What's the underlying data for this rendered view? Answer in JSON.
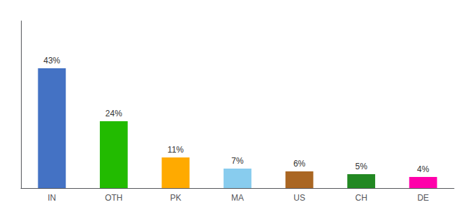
{
  "chart_data": {
    "type": "bar",
    "categories": [
      "IN",
      "OTH",
      "PK",
      "MA",
      "US",
      "CH",
      "DE"
    ],
    "values": [
      43,
      24,
      11,
      7,
      6,
      5,
      4
    ],
    "value_labels": [
      "43%",
      "24%",
      "11%",
      "7%",
      "6%",
      "5%",
      "4%"
    ],
    "colors": [
      "#4472c4",
      "#22bb00",
      "#ffaa00",
      "#88ccee",
      "#aa6622",
      "#228822",
      "#ff00aa"
    ],
    "ylim": [
      0,
      60
    ],
    "data_labels": true,
    "tick_labels": "x",
    "grid": false
  }
}
